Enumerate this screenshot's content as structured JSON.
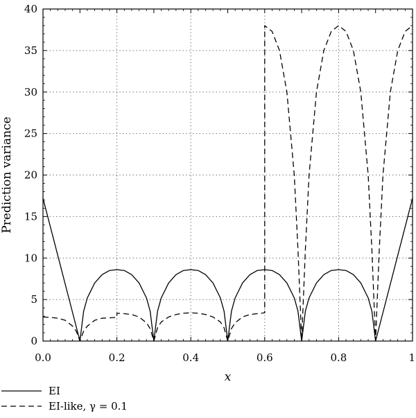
{
  "chart_data": {
    "type": "line",
    "xlabel": "x",
    "ylabel": "Prediction variance",
    "xlim": [
      0,
      1
    ],
    "ylim": [
      0,
      40
    ],
    "x_ticks": [
      0,
      0.1,
      0.2,
      0.3,
      0.4,
      0.5,
      0.6,
      0.7,
      0.8,
      0.9,
      1
    ],
    "x_tick_labels": [
      "0.0",
      "",
      "0.2",
      "",
      "0.4",
      "",
      "0.6",
      "",
      "0.8",
      "",
      "1"
    ],
    "y_ticks": [
      0,
      5,
      10,
      15,
      20,
      25,
      30,
      35,
      40
    ],
    "y_tick_labels": [
      "0",
      "5",
      "10",
      "15",
      "20",
      "25",
      "30",
      "35",
      "40"
    ],
    "grid": true,
    "grid_x": [
      0.2,
      0.4,
      0.6,
      0.8
    ],
    "grid_y": [
      5,
      10,
      15,
      20,
      25,
      30,
      35
    ],
    "legend_position": "bottom-left, below plot",
    "series": [
      {
        "name": "EI",
        "style": "solid",
        "x": [
          0.0,
          0.1,
          0.11,
          0.12,
          0.14,
          0.16,
          0.18,
          0.2,
          0.22,
          0.24,
          0.26,
          0.28,
          0.29,
          0.3,
          0.31,
          0.32,
          0.34,
          0.36,
          0.38,
          0.4,
          0.42,
          0.44,
          0.46,
          0.48,
          0.49,
          0.5,
          0.51,
          0.52,
          0.54,
          0.56,
          0.58,
          0.6,
          0.62,
          0.64,
          0.66,
          0.68,
          0.69,
          0.7,
          0.71,
          0.72,
          0.74,
          0.76,
          0.78,
          0.8,
          0.82,
          0.84,
          0.86,
          0.88,
          0.89,
          0.9,
          1.0
        ],
        "y": [
          17.2,
          0.0,
          3.6,
          5.2,
          7.0,
          8.0,
          8.5,
          8.6,
          8.5,
          8.0,
          7.0,
          5.2,
          3.6,
          0.0,
          3.6,
          5.2,
          7.0,
          8.0,
          8.5,
          8.6,
          8.5,
          8.0,
          7.0,
          5.2,
          3.6,
          0.0,
          3.6,
          5.2,
          7.0,
          8.0,
          8.5,
          8.6,
          8.5,
          8.0,
          7.0,
          5.2,
          3.6,
          0.0,
          3.6,
          5.2,
          7.0,
          8.0,
          8.5,
          8.6,
          8.5,
          8.0,
          7.0,
          5.2,
          3.6,
          0.0,
          17.2
        ]
      },
      {
        "name": "EI-like, γ = 0.1",
        "style": "dashed",
        "x": [
          0.0,
          0.02,
          0.04,
          0.06,
          0.08,
          0.09,
          0.1,
          0.11,
          0.12,
          0.14,
          0.16,
          0.18,
          0.2,
          0.2,
          0.22,
          0.24,
          0.26,
          0.28,
          0.29,
          0.3,
          0.31,
          0.32,
          0.34,
          0.36,
          0.38,
          0.4,
          0.42,
          0.44,
          0.46,
          0.48,
          0.49,
          0.5,
          0.51,
          0.52,
          0.54,
          0.56,
          0.58,
          0.6,
          0.6,
          0.62,
          0.64,
          0.66,
          0.68,
          0.69,
          0.7,
          0.71,
          0.72,
          0.74,
          0.76,
          0.78,
          0.8,
          0.82,
          0.84,
          0.86,
          0.88,
          0.89,
          0.9,
          0.91,
          0.92,
          0.94,
          0.96,
          0.98,
          1.0
        ],
        "y": [
          2.9,
          2.85,
          2.75,
          2.5,
          1.8,
          1.2,
          0.0,
          1.2,
          1.8,
          2.5,
          2.75,
          2.8,
          2.85,
          3.35,
          3.3,
          3.2,
          2.9,
          2.2,
          1.5,
          0.0,
          1.6,
          2.3,
          2.9,
          3.2,
          3.35,
          3.4,
          3.35,
          3.2,
          2.9,
          2.3,
          1.6,
          0.0,
          1.5,
          2.2,
          2.9,
          3.2,
          3.3,
          3.4,
          38.0,
          37.3,
          35.0,
          30.0,
          20.0,
          11.0,
          0.0,
          11.0,
          20.0,
          30.0,
          35.0,
          37.3,
          38.0,
          37.3,
          35.0,
          30.0,
          20.0,
          11.0,
          0.0,
          11.0,
          20.0,
          30.0,
          35.0,
          37.3,
          38.0
        ]
      }
    ]
  }
}
